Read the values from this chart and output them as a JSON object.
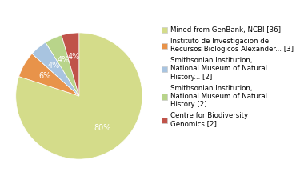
{
  "slices": [
    36,
    3,
    2,
    2,
    2
  ],
  "colors": [
    "#d4dc8a",
    "#e8934a",
    "#a8c4e0",
    "#b8d48a",
    "#c0534a"
  ],
  "labels": [
    "Mined from GenBank, NCBI [36]",
    "Instituto de Investigacion de\nRecursos Biologicos Alexander... [3]",
    "Smithsonian Institution,\nNational Museum of Natural\nHistory... [2]",
    "Smithsonian Institution,\nNational Museum of Natural\nHistory [2]",
    "Centre for Biodiversity\nGenomics [2]"
  ],
  "autopct_labels": [
    "80%",
    "6%",
    "4%",
    "4%",
    "4%"
  ],
  "background_color": "#ffffff",
  "text_color": "#ffffff",
  "fontsize": 7,
  "legend_fontsize": 6.2
}
